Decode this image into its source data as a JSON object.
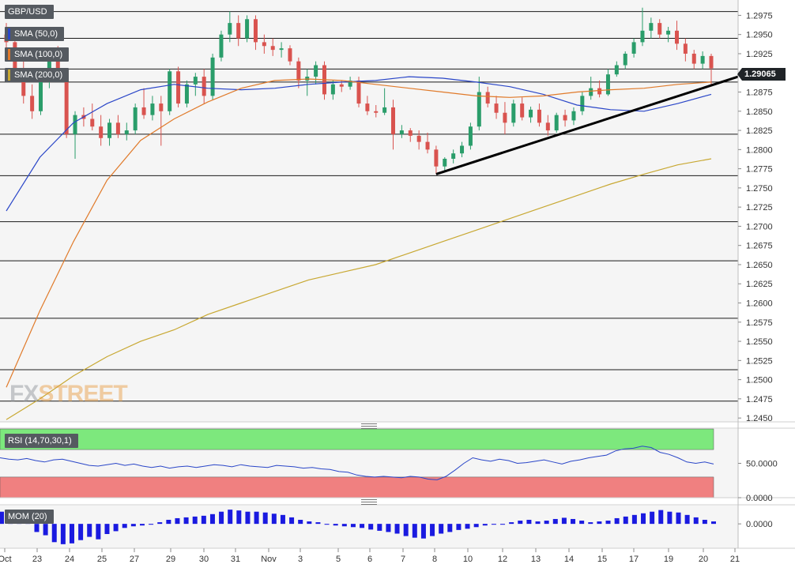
{
  "symbol": "GBP/USD",
  "last_price": "1.29065",
  "watermark": {
    "part1": "FX",
    "part2": "STREET"
  },
  "legend": [
    {
      "label": "SMA (50,0)",
      "color": "#2a46c8"
    },
    {
      "label": "SMA (100,0)",
      "color": "#e07a2a"
    },
    {
      "label": "SMA (200,0)",
      "color": "#c8a832"
    }
  ],
  "colors": {
    "up": "#2a9d6a",
    "down": "#d9534f",
    "trendline": "#000000",
    "rsi_line": "#2a46c8",
    "mom_bar": "#1a1ae0",
    "rsi_overbought": "#7de87d",
    "rsi_oversold": "#f08080"
  },
  "chart_data": [
    {
      "type": "candlestick",
      "title": "GBP/USD",
      "x_tick_labels": [
        "Oct",
        "23",
        "24",
        "25",
        "27",
        "29",
        "30",
        "31",
        "Nov",
        "3",
        "5",
        "6",
        "7",
        "8",
        "10",
        "12",
        "13",
        "14",
        "15",
        "17",
        "19",
        "20",
        "21"
      ],
      "y_tick_labels": [
        "1.2975",
        "1.2950",
        "1.2925",
        "1.2900",
        "1.2875",
        "1.2850",
        "1.2825",
        "1.2800",
        "1.2775",
        "1.2750",
        "1.2725",
        "1.2700",
        "1.2675",
        "1.2650",
        "1.2625",
        "1.2600",
        "1.2575",
        "1.2550",
        "1.2525",
        "1.2500",
        "1.2475",
        "1.2450"
      ],
      "ylim": [
        1.2445,
        1.2995
      ],
      "horizontal_levels": [
        1.298,
        1.2945,
        1.2905,
        1.2888,
        1.282,
        1.2766,
        1.2706,
        1.2655,
        1.258,
        1.2513,
        1.2472
      ],
      "trendline": [
        [
          1.2768
        ],
        [
          1.2895
        ]
      ],
      "candles": [
        [
          1.295,
          1.2965,
          1.293,
          1.294
        ],
        [
          1.294,
          1.2952,
          1.2895,
          1.2905
        ],
        [
          1.2905,
          1.2915,
          1.286,
          1.287
        ],
        [
          1.287,
          1.2885,
          1.284,
          1.285
        ],
        [
          1.285,
          1.2895,
          1.2845,
          1.2888
        ],
        [
          1.2888,
          1.293,
          1.288,
          1.292
        ],
        [
          1.292,
          1.2935,
          1.289,
          1.2898
        ],
        [
          1.2898,
          1.2905,
          1.2815,
          1.282
        ],
        [
          1.282,
          1.285,
          1.2788,
          1.2845
        ],
        [
          1.2845,
          1.2855,
          1.283,
          1.284
        ],
        [
          1.284,
          1.286,
          1.2825,
          1.283
        ],
        [
          1.283,
          1.2845,
          1.2805,
          1.2815
        ],
        [
          1.2815,
          1.284,
          1.2805,
          1.2835
        ],
        [
          1.2835,
          1.2845,
          1.2815,
          1.282
        ],
        [
          1.282,
          1.2835,
          1.2812,
          1.2825
        ],
        [
          1.2825,
          1.286,
          1.282,
          1.2855
        ],
        [
          1.2855,
          1.288,
          1.284,
          1.2845
        ],
        [
          1.2845,
          1.287,
          1.2838,
          1.286
        ],
        [
          1.286,
          1.287,
          1.2805,
          1.285
        ],
        [
          1.285,
          1.2905,
          1.2845,
          1.2902
        ],
        [
          1.2902,
          1.2908,
          1.2855,
          1.286
        ],
        [
          1.286,
          1.289,
          1.2855,
          1.2885
        ],
        [
          1.2885,
          1.29,
          1.287,
          1.2895
        ],
        [
          1.2895,
          1.2905,
          1.286,
          1.287
        ],
        [
          1.287,
          1.2925,
          1.2865,
          1.292
        ],
        [
          1.292,
          1.2955,
          1.2915,
          1.295
        ],
        [
          1.295,
          1.298,
          1.294,
          1.2965
        ],
        [
          1.2965,
          1.2975,
          1.2935,
          1.2945
        ],
        [
          1.2945,
          1.2975,
          1.294,
          1.297
        ],
        [
          1.297,
          1.2975,
          1.293,
          1.294
        ],
        [
          1.294,
          1.295,
          1.2925,
          1.2935
        ],
        [
          1.2935,
          1.2945,
          1.2922,
          1.293
        ],
        [
          1.293,
          1.294,
          1.292,
          1.2932
        ],
        [
          1.2932,
          1.2936,
          1.291,
          1.2915
        ],
        [
          1.2915,
          1.292,
          1.288,
          1.289
        ],
        [
          1.289,
          1.2905,
          1.287,
          1.2895
        ],
        [
          1.2895,
          1.2915,
          1.2885,
          1.291
        ],
        [
          1.291,
          1.2915,
          1.2865,
          1.2872
        ],
        [
          1.2872,
          1.289,
          1.2865,
          1.2885
        ],
        [
          1.2885,
          1.289,
          1.2875,
          1.2882
        ],
        [
          1.2882,
          1.2895,
          1.2878,
          1.289
        ],
        [
          1.289,
          1.2895,
          1.2855,
          1.286
        ],
        [
          1.286,
          1.287,
          1.2845,
          1.285
        ],
        [
          1.285,
          1.2858,
          1.2842,
          1.2848
        ],
        [
          1.2848,
          1.288,
          1.2845,
          1.2855
        ],
        [
          1.2855,
          1.2865,
          1.28,
          1.282
        ],
        [
          1.282,
          1.2832,
          1.2815,
          1.2825
        ],
        [
          1.2825,
          1.2828,
          1.281,
          1.2818
        ],
        [
          1.2818,
          1.2825,
          1.28,
          1.281
        ],
        [
          1.281,
          1.2822,
          1.2795,
          1.28
        ],
        [
          1.28,
          1.2805,
          1.2768,
          1.2778
        ],
        [
          1.2778,
          1.279,
          1.277,
          1.2788
        ],
        [
          1.2788,
          1.28,
          1.2782,
          1.2795
        ],
        [
          1.2795,
          1.281,
          1.279,
          1.2805
        ],
        [
          1.2805,
          1.2835,
          1.28,
          1.283
        ],
        [
          1.283,
          1.2895,
          1.2825,
          1.2875
        ],
        [
          1.2875,
          1.2882,
          1.2855,
          1.286
        ],
        [
          1.286,
          1.287,
          1.284,
          1.2848
        ],
        [
          1.2848,
          1.2862,
          1.282,
          1.2835
        ],
        [
          1.2835,
          1.2865,
          1.283,
          1.286
        ],
        [
          1.286,
          1.2868,
          1.2838,
          1.2842
        ],
        [
          1.2842,
          1.2856,
          1.2835,
          1.2852
        ],
        [
          1.2852,
          1.286,
          1.283,
          1.2835
        ],
        [
          1.2835,
          1.2845,
          1.2818,
          1.2825
        ],
        [
          1.2825,
          1.2848,
          1.2822,
          1.2845
        ],
        [
          1.2845,
          1.2852,
          1.283,
          1.2838
        ],
        [
          1.2838,
          1.2855,
          1.2832,
          1.285
        ],
        [
          1.285,
          1.2875,
          1.2845,
          1.287
        ],
        [
          1.287,
          1.2895,
          1.2865,
          1.288
        ],
        [
          1.288,
          1.289,
          1.2868,
          1.2872
        ],
        [
          1.2872,
          1.2905,
          1.287,
          1.2898
        ],
        [
          1.2898,
          1.2915,
          1.2895,
          1.291
        ],
        [
          1.291,
          1.2928,
          1.2905,
          1.2925
        ],
        [
          1.2925,
          1.2945,
          1.292,
          1.294
        ],
        [
          1.294,
          1.2985,
          1.2935,
          1.2955
        ],
        [
          1.2955,
          1.2972,
          1.2945,
          1.2965
        ],
        [
          1.2965,
          1.297,
          1.2945,
          1.295
        ],
        [
          1.295,
          1.296,
          1.294,
          1.2955
        ],
        [
          1.2955,
          1.2968,
          1.293,
          1.2938
        ],
        [
          1.2938,
          1.2945,
          1.2915,
          1.2925
        ],
        [
          1.2925,
          1.293,
          1.2905,
          1.2912
        ],
        [
          1.2912,
          1.2928,
          1.2905,
          1.2922
        ],
        [
          1.2922,
          1.2925,
          1.2885,
          1.2906
        ]
      ],
      "series": [
        {
          "name": "SMA (50,0)",
          "values": [
            1.272,
            1.279,
            1.2835,
            1.286,
            1.2878,
            1.2885,
            1.288,
            1.2878,
            1.288,
            1.2885,
            1.2888,
            1.289,
            1.2895,
            1.2893,
            1.2888,
            1.2882,
            1.2872,
            1.2858,
            1.2852,
            1.285,
            1.286,
            1.2872
          ]
        },
        {
          "name": "SMA (100,0)",
          "values": [
            1.249,
            1.259,
            1.268,
            1.276,
            1.2812,
            1.284,
            1.2862,
            1.288,
            1.289,
            1.2892,
            1.289,
            1.2885,
            1.288,
            1.2875,
            1.287,
            1.2868,
            1.287,
            1.2875,
            1.2878,
            1.288,
            1.2885,
            1.2888
          ]
        },
        {
          "name": "SMA (200,0)",
          "values": [
            1.2448,
            1.2475,
            1.2505,
            1.253,
            1.255,
            1.2565,
            1.2585,
            1.26,
            1.2615,
            1.263,
            1.264,
            1.265,
            1.2665,
            1.268,
            1.2695,
            1.271,
            1.2725,
            1.274,
            1.2755,
            1.2768,
            1.278,
            1.2788
          ]
        }
      ]
    },
    {
      "type": "line",
      "title": "RSI (14,70,30,1)",
      "y_tick_labels": [
        "50.0000",
        "0.0000"
      ],
      "ylim": [
        0,
        100
      ],
      "overbought": 70,
      "oversold": 30,
      "values": [
        58,
        56,
        55,
        57,
        54,
        52,
        55,
        56,
        53,
        50,
        47,
        46,
        48,
        50,
        47,
        49,
        46,
        44,
        46,
        43,
        45,
        46,
        44,
        46,
        48,
        47,
        45,
        48,
        46,
        45,
        44,
        47,
        46,
        45,
        43,
        44,
        42,
        41,
        38,
        37,
        33,
        31,
        30,
        31,
        30,
        29,
        31,
        30,
        27,
        26,
        31,
        40,
        50,
        58,
        55,
        53,
        56,
        54,
        50,
        51,
        53,
        55,
        52,
        49,
        53,
        55,
        58,
        60,
        62,
        68,
        71,
        72,
        75,
        73,
        66,
        63,
        58,
        52,
        50,
        52,
        49
      ]
    },
    {
      "type": "bar",
      "title": "MOM (20)",
      "y_tick_labels": [
        "0.0000"
      ],
      "ylim": [
        -0.006,
        0.0045
      ],
      "values": [
        0.003,
        0.0024,
        0.0018,
        0.0012,
        -0.002,
        -0.0028,
        -0.0045,
        -0.005,
        -0.0048,
        -0.004,
        -0.0032,
        -0.0038,
        -0.0025,
        -0.0018,
        -0.001,
        -0.0006,
        -0.0004,
        -0.0002,
        0.0004,
        0.001,
        0.0014,
        0.0016,
        0.0018,
        0.002,
        0.0024,
        0.003,
        0.0035,
        0.0033,
        0.003,
        0.003,
        0.0028,
        0.0025,
        0.0022,
        0.0016,
        0.001,
        0.0006,
        0.0004,
        -0.0002,
        -0.0004,
        -0.0006,
        -0.0008,
        -0.001,
        -0.0014,
        -0.0017,
        -0.002,
        -0.0024,
        -0.003,
        -0.0034,
        -0.0036,
        -0.003,
        -0.0024,
        -0.002,
        -0.0015,
        -0.0012,
        -0.0008,
        -0.0004,
        -0.0002,
        -0.0002,
        0.0004,
        0.0008,
        0.001,
        0.0006,
        0.0008,
        0.0012,
        0.0015,
        0.0012,
        0.0008,
        0.0004,
        0.0006,
        0.0008,
        0.0014,
        0.0018,
        0.0022,
        0.0026,
        0.003,
        0.0034,
        0.003,
        0.0028,
        0.0022,
        0.0016,
        0.001,
        0.0006
      ]
    }
  ]
}
